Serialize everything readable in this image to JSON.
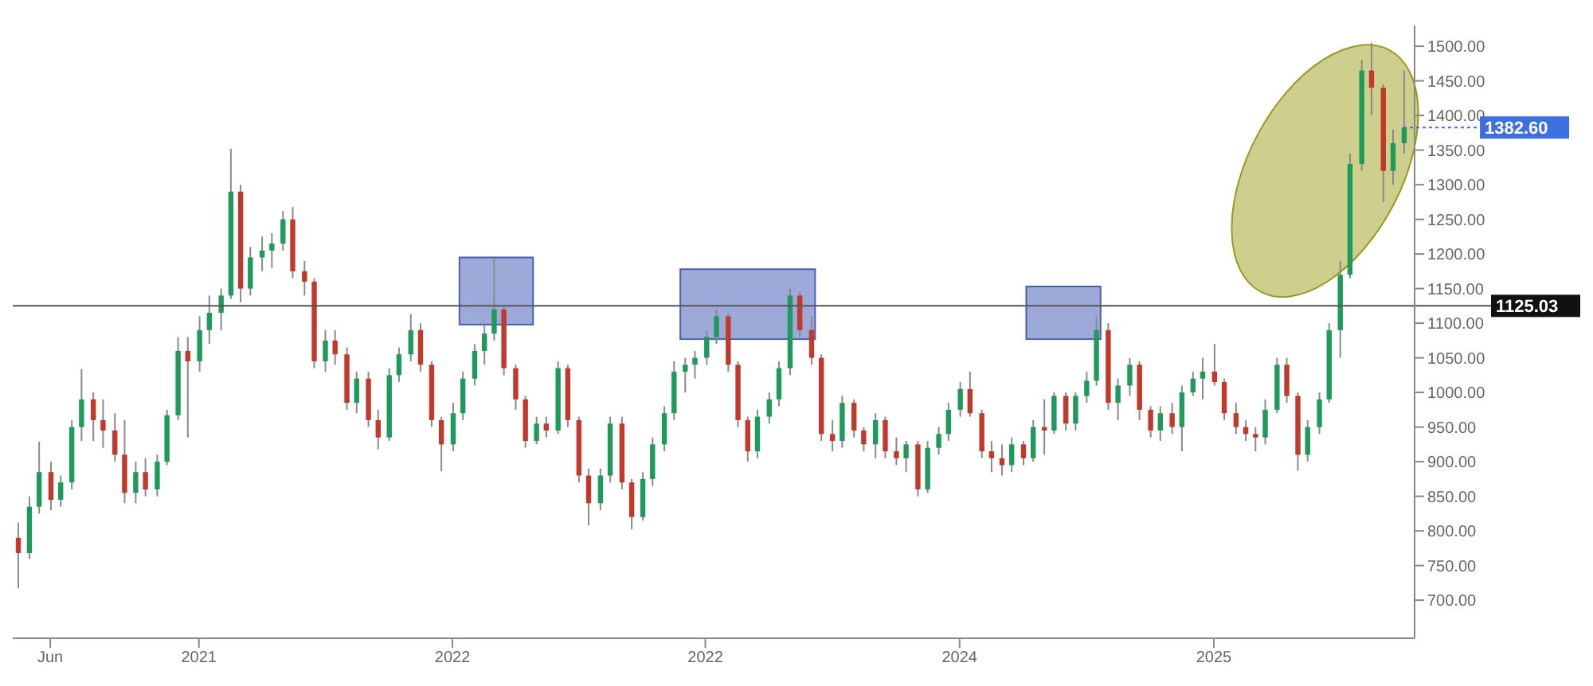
{
  "chart_data": {
    "type": "candlestick",
    "x": [
      "2020-04-15",
      "2020-05-01",
      "2020-05-15",
      "2020-06-01",
      "2020-06-15",
      "2020-07-01",
      "2020-07-15",
      "2020-08-01",
      "2020-08-15",
      "2020-09-01",
      "2020-09-15",
      "2020-10-01",
      "2020-10-15",
      "2020-11-01",
      "2020-11-15",
      "2020-12-01",
      "2020-12-15",
      "2021-01-01",
      "2021-01-15",
      "2021-02-01",
      "2021-02-15",
      "2021-03-01",
      "2021-03-15",
      "2021-04-01",
      "2021-04-15",
      "2021-05-01",
      "2021-05-15",
      "2021-06-01",
      "2021-06-15",
      "2021-07-01",
      "2021-07-15",
      "2021-08-01",
      "2021-08-15",
      "2021-09-01",
      "2021-09-15",
      "2021-10-01",
      "2021-10-15",
      "2021-11-01",
      "2021-11-15",
      "2021-12-01",
      "2021-12-15",
      "2022-01-01",
      "2022-01-15",
      "2022-02-01",
      "2022-02-15",
      "2022-03-01",
      "2022-03-15",
      "2022-04-01",
      "2022-04-15",
      "2022-05-01",
      "2022-05-15",
      "2022-06-01",
      "2022-06-15",
      "2022-07-01",
      "2022-07-15",
      "2022-08-01",
      "2022-08-15",
      "2022-09-01",
      "2022-09-15",
      "2022-10-01",
      "2022-10-15",
      "2022-11-01",
      "2022-11-15",
      "2022-12-01",
      "2022-12-15",
      "2023-01-01",
      "2023-01-15",
      "2023-02-01",
      "2023-02-15",
      "2023-03-01",
      "2023-03-15",
      "2023-04-01",
      "2023-04-15",
      "2023-05-01",
      "2023-05-15",
      "2023-06-01",
      "2023-06-15",
      "2023-07-01",
      "2023-07-15",
      "2023-08-01",
      "2023-08-15",
      "2023-09-01",
      "2023-09-15",
      "2023-10-01",
      "2023-10-15",
      "2023-11-01",
      "2023-11-15",
      "2023-12-01",
      "2023-12-15",
      "2024-01-01",
      "2024-01-15",
      "2024-02-01",
      "2024-02-15",
      "2024-03-01",
      "2024-03-15",
      "2024-04-01",
      "2024-04-15",
      "2024-05-01",
      "2024-05-15",
      "2024-06-01",
      "2024-06-15",
      "2024-07-01",
      "2024-07-15",
      "2024-08-01",
      "2024-08-15",
      "2024-09-01",
      "2024-09-15",
      "2024-10-01",
      "2024-10-15",
      "2024-11-01",
      "2024-11-15",
      "2024-12-01",
      "2024-12-15",
      "2025-01-01",
      "2025-01-15",
      "2025-02-01",
      "2025-02-15",
      "2025-03-01",
      "2025-03-15",
      "2025-04-01",
      "2025-04-15",
      "2025-05-01",
      "2025-05-15",
      "2025-06-01",
      "2025-06-15",
      "2025-07-01",
      "2025-07-15",
      "2025-08-01",
      "2025-08-15",
      "2025-09-01",
      "2025-09-15",
      "2025-10-01"
    ],
    "ohlc": [
      [
        790,
        812,
        717,
        768
      ],
      [
        768,
        850,
        760,
        835
      ],
      [
        835,
        929,
        825,
        885
      ],
      [
        885,
        900,
        830,
        845
      ],
      [
        845,
        880,
        835,
        870
      ],
      [
        870,
        960,
        860,
        950
      ],
      [
        950,
        1034,
        930,
        990
      ],
      [
        990,
        1000,
        930,
        960
      ],
      [
        960,
        990,
        920,
        945
      ],
      [
        945,
        970,
        900,
        910
      ],
      [
        910,
        960,
        840,
        855
      ],
      [
        855,
        900,
        840,
        885
      ],
      [
        885,
        905,
        850,
        860
      ],
      [
        860,
        910,
        850,
        900
      ],
      [
        900,
        975,
        895,
        967
      ],
      [
        967,
        1080,
        960,
        1060
      ],
      [
        1060,
        1080,
        935,
        1045
      ],
      [
        1045,
        1110,
        1030,
        1090
      ],
      [
        1090,
        1140,
        1070,
        1115
      ],
      [
        1115,
        1150,
        1090,
        1140
      ],
      [
        1140,
        1352,
        1135,
        1290
      ],
      [
        1290,
        1300,
        1130,
        1150
      ],
      [
        1150,
        1210,
        1140,
        1195
      ],
      [
        1195,
        1225,
        1175,
        1205
      ],
      [
        1205,
        1230,
        1180,
        1215
      ],
      [
        1215,
        1262,
        1205,
        1250
      ],
      [
        1250,
        1268,
        1165,
        1175
      ],
      [
        1175,
        1190,
        1140,
        1160
      ],
      [
        1160,
        1165,
        1035,
        1045
      ],
      [
        1045,
        1090,
        1030,
        1075
      ],
      [
        1075,
        1090,
        1040,
        1055
      ],
      [
        1055,
        1065,
        975,
        985
      ],
      [
        985,
        1030,
        970,
        1020
      ],
      [
        1020,
        1030,
        950,
        960
      ],
      [
        960,
        975,
        918,
        935
      ],
      [
        935,
        1035,
        930,
        1025
      ],
      [
        1025,
        1065,
        1015,
        1055
      ],
      [
        1055,
        1113,
        1045,
        1090
      ],
      [
        1090,
        1100,
        1030,
        1040
      ],
      [
        1040,
        1045,
        950,
        960
      ],
      [
        960,
        965,
        886,
        925
      ],
      [
        925,
        985,
        915,
        970
      ],
      [
        970,
        1030,
        960,
        1020
      ],
      [
        1020,
        1070,
        1010,
        1060
      ],
      [
        1060,
        1100,
        1040,
        1085
      ],
      [
        1085,
        1193,
        1075,
        1120
      ],
      [
        1120,
        1125,
        1025,
        1035
      ],
      [
        1035,
        1040,
        975,
        990
      ],
      [
        990,
        995,
        920,
        930
      ],
      [
        930,
        965,
        925,
        955
      ],
      [
        955,
        965,
        935,
        945
      ],
      [
        945,
        1045,
        940,
        1035
      ],
      [
        1035,
        1040,
        950,
        960
      ],
      [
        960,
        965,
        870,
        880
      ],
      [
        880,
        890,
        808,
        840
      ],
      [
        840,
        890,
        830,
        880
      ],
      [
        880,
        965,
        870,
        955
      ],
      [
        955,
        965,
        860,
        870
      ],
      [
        870,
        875,
        802,
        820
      ],
      [
        820,
        885,
        815,
        875
      ],
      [
        875,
        935,
        865,
        925
      ],
      [
        925,
        980,
        915,
        970
      ],
      [
        970,
        1045,
        960,
        1030
      ],
      [
        1030,
        1050,
        1000,
        1040
      ],
      [
        1040,
        1060,
        1020,
        1050
      ],
      [
        1050,
        1090,
        1040,
        1080
      ],
      [
        1080,
        1120,
        1070,
        1110
      ],
      [
        1110,
        1115,
        1030,
        1040
      ],
      [
        1040,
        1045,
        950,
        960
      ],
      [
        960,
        965,
        900,
        915
      ],
      [
        915,
        975,
        905,
        965
      ],
      [
        965,
        1000,
        955,
        990
      ],
      [
        990,
        1045,
        980,
        1035
      ],
      [
        1035,
        1150,
        1025,
        1140
      ],
      [
        1140,
        1145,
        1080,
        1090
      ],
      [
        1090,
        1110,
        1040,
        1050
      ],
      [
        1050,
        1055,
        930,
        940
      ],
      [
        940,
        960,
        915,
        930
      ],
      [
        930,
        995,
        920,
        985
      ],
      [
        985,
        990,
        935,
        945
      ],
      [
        945,
        950,
        915,
        925
      ],
      [
        925,
        970,
        905,
        960
      ],
      [
        960,
        965,
        905,
        915
      ],
      [
        915,
        935,
        895,
        905
      ],
      [
        905,
        930,
        885,
        925
      ],
      [
        925,
        930,
        850,
        860
      ],
      [
        860,
        930,
        855,
        920
      ],
      [
        920,
        950,
        910,
        940
      ],
      [
        940,
        985,
        930,
        975
      ],
      [
        975,
        1015,
        965,
        1005
      ],
      [
        1005,
        1030,
        965,
        970
      ],
      [
        970,
        975,
        905,
        915
      ],
      [
        915,
        930,
        885,
        905
      ],
      [
        905,
        925,
        880,
        895
      ],
      [
        895,
        935,
        885,
        925
      ],
      [
        925,
        930,
        895,
        905
      ],
      [
        905,
        960,
        900,
        950
      ],
      [
        950,
        990,
        910,
        945
      ],
      [
        945,
        1000,
        940,
        995
      ],
      [
        995,
        1000,
        945,
        955
      ],
      [
        955,
        1000,
        945,
        995
      ],
      [
        995,
        1030,
        985,
        1017
      ],
      [
        1017,
        1110,
        1010,
        1090
      ],
      [
        1090,
        1100,
        975,
        985
      ],
      [
        985,
        1020,
        960,
        1010
      ],
      [
        1010,
        1050,
        995,
        1040
      ],
      [
        1040,
        1045,
        960,
        975
      ],
      [
        975,
        980,
        935,
        945
      ],
      [
        945,
        980,
        930,
        970
      ],
      [
        970,
        985,
        940,
        950
      ],
      [
        950,
        1010,
        915,
        1000
      ],
      [
        1000,
        1030,
        995,
        1020
      ],
      [
        1020,
        1050,
        990,
        1030
      ],
      [
        1030,
        1070,
        1010,
        1015
      ],
      [
        1015,
        1020,
        960,
        970
      ],
      [
        970,
        985,
        940,
        950
      ],
      [
        950,
        960,
        930,
        940
      ],
      [
        940,
        950,
        915,
        935
      ],
      [
        935,
        990,
        925,
        975
      ],
      [
        975,
        1050,
        970,
        1040
      ],
      [
        1040,
        1050,
        985,
        995
      ],
      [
        995,
        1000,
        887,
        910
      ],
      [
        910,
        960,
        900,
        950
      ],
      [
        950,
        1000,
        940,
        990
      ],
      [
        990,
        1100,
        985,
        1090
      ],
      [
        1090,
        1190,
        1050,
        1170
      ],
      [
        1170,
        1345,
        1165,
        1330
      ],
      [
        1330,
        1480,
        1320,
        1465
      ],
      [
        1465,
        1505,
        1400,
        1440
      ],
      [
        1440,
        1445,
        1275,
        1320
      ],
      [
        1320,
        1380,
        1300,
        1360
      ],
      [
        1360,
        1465,
        1345,
        1382.6
      ]
    ],
    "colors": [
      "#c0392b",
      "#1e9b5b",
      "#1e9b5b",
      "#c0392b",
      "#1e9b5b",
      "#1e9b5b",
      "#1e9b5b",
      "#c0392b",
      "#c0392b",
      "#c0392b",
      "#c0392b",
      "#1e9b5b",
      "#c0392b",
      "#1e9b5b",
      "#1e9b5b",
      "#1e9b5b",
      "#c0392b",
      "#1e9b5b",
      "#1e9b5b",
      "#1e9b5b",
      "#1e9b5b",
      "#c0392b",
      "#1e9b5b",
      "#1e9b5b",
      "#1e9b5b",
      "#1e9b5b",
      "#c0392b",
      "#c0392b",
      "#c0392b",
      "#1e9b5b",
      "#c0392b",
      "#c0392b",
      "#1e9b5b",
      "#c0392b",
      "#c0392b",
      "#1e9b5b",
      "#1e9b5b",
      "#1e9b5b",
      "#c0392b",
      "#c0392b",
      "#c0392b",
      "#1e9b5b",
      "#1e9b5b",
      "#1e9b5b",
      "#1e9b5b",
      "#1e9b5b",
      "#c0392b",
      "#c0392b",
      "#c0392b",
      "#1e9b5b",
      "#c0392b",
      "#1e9b5b",
      "#c0392b",
      "#c0392b",
      "#c0392b",
      "#1e9b5b",
      "#1e9b5b",
      "#c0392b",
      "#c0392b",
      "#1e9b5b",
      "#1e9b5b",
      "#1e9b5b",
      "#1e9b5b",
      "#1e9b5b",
      "#1e9b5b",
      "#1e9b5b",
      "#1e9b5b",
      "#c0392b",
      "#c0392b",
      "#c0392b",
      "#1e9b5b",
      "#1e9b5b",
      "#1e9b5b",
      "#1e9b5b",
      "#c0392b",
      "#c0392b",
      "#c0392b",
      "#c0392b",
      "#1e9b5b",
      "#c0392b",
      "#c0392b",
      "#1e9b5b",
      "#c0392b",
      "#c0392b",
      "#1e9b5b",
      "#c0392b",
      "#1e9b5b",
      "#1e9b5b",
      "#1e9b5b",
      "#1e9b5b",
      "#c0392b",
      "#c0392b",
      "#c0392b",
      "#c0392b",
      "#1e9b5b",
      "#c0392b",
      "#1e9b5b",
      "#c0392b",
      "#1e9b5b",
      "#c0392b",
      "#1e9b5b",
      "#1e9b5b",
      "#1e9b5b",
      "#c0392b",
      "#1e9b5b",
      "#1e9b5b",
      "#c0392b",
      "#c0392b",
      "#1e9b5b",
      "#c0392b",
      "#1e9b5b",
      "#1e9b5b",
      "#1e9b5b",
      "#c0392b",
      "#c0392b",
      "#c0392b",
      "#c0392b",
      "#c0392b",
      "#1e9b5b",
      "#1e9b5b",
      "#c0392b",
      "#c0392b",
      "#1e9b5b",
      "#1e9b5b",
      "#1e9b5b",
      "#1e9b5b",
      "#1e9b5b",
      "#1e9b5b",
      "#c0392b",
      "#c0392b",
      "#1e9b5b",
      "#1e9b5b"
    ],
    "xlim": [
      "2020-04-08",
      "2025-10-17"
    ],
    "xticks": [
      {
        "value": "2020-06",
        "label": "Jun"
      },
      "2021",
      "2022",
      {
        "value": "2022-12-31",
        "label": "2022"
      },
      "2024",
      "2025"
    ],
    "ylim": [
      645,
      1530
    ],
    "yticks": [
      {
        "value": 700,
        "label": "700.00"
      },
      {
        "value": 750,
        "label": "750.00"
      },
      {
        "value": 800,
        "label": "800.00"
      },
      {
        "value": 850,
        "label": "850.00"
      },
      {
        "value": 900,
        "label": "900.00"
      },
      {
        "value": 950,
        "label": "950.00"
      },
      {
        "value": 1000,
        "label": "1000.00"
      },
      {
        "value": 1050,
        "label": "1050.00"
      },
      {
        "value": 1100,
        "label": "1100.00"
      },
      {
        "value": 1150,
        "label": "1150.00"
      },
      {
        "value": 1200,
        "label": "1200.00"
      },
      {
        "value": 1250,
        "label": "1250.00"
      },
      {
        "value": 1300,
        "label": "1300.00"
      },
      {
        "value": 1350,
        "label": "1350.00"
      },
      {
        "value": 1400,
        "label": "1400.00"
      },
      {
        "value": 1450,
        "label": "1450.00"
      },
      {
        "value": 1500,
        "label": "1500.00"
      }
    ],
    "ref_lines": [
      {
        "axis": "y",
        "value": 1125.03,
        "label": "1125.03",
        "color": "#555555"
      }
    ],
    "annotations": [
      {
        "text": "1382.60",
        "x": "2025-10-01",
        "y": 1382.6
      }
    ]
  }
}
